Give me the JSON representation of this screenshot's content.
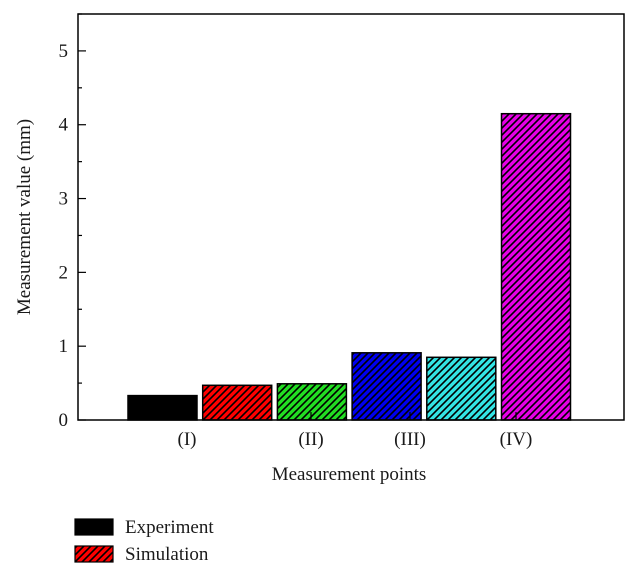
{
  "chart_data": {
    "type": "bar",
    "xlabel": "Measurement points",
    "ylabel": "Measurement value (mm)",
    "ylim": [
      0,
      5.5
    ],
    "yticks": [
      "0",
      "1",
      "2",
      "3",
      "4",
      "5"
    ],
    "categories": [
      "(I)",
      "(II)",
      "(III)",
      "(IV)"
    ],
    "bars": [
      {
        "value": 0.33,
        "color": "#000000",
        "hatched": false
      },
      {
        "value": 0.47,
        "color": "#ff0000",
        "hatched": true
      },
      {
        "value": 0.49,
        "color": "#22dd22",
        "hatched": true
      },
      {
        "value": 0.91,
        "color": "#0000ee",
        "hatched": true
      },
      {
        "value": 0.85,
        "color": "#33e5e5",
        "hatched": true
      },
      {
        "value": 4.15,
        "color": "#e600e6",
        "hatched": true
      }
    ],
    "legend": {
      "position": "bottom-left",
      "entries": [
        {
          "label": "Experiment",
          "color": "#000000",
          "hatched": false
        },
        {
          "label": "Simulation",
          "color": "#ff0000",
          "hatched": true
        }
      ]
    },
    "grid": false
  }
}
